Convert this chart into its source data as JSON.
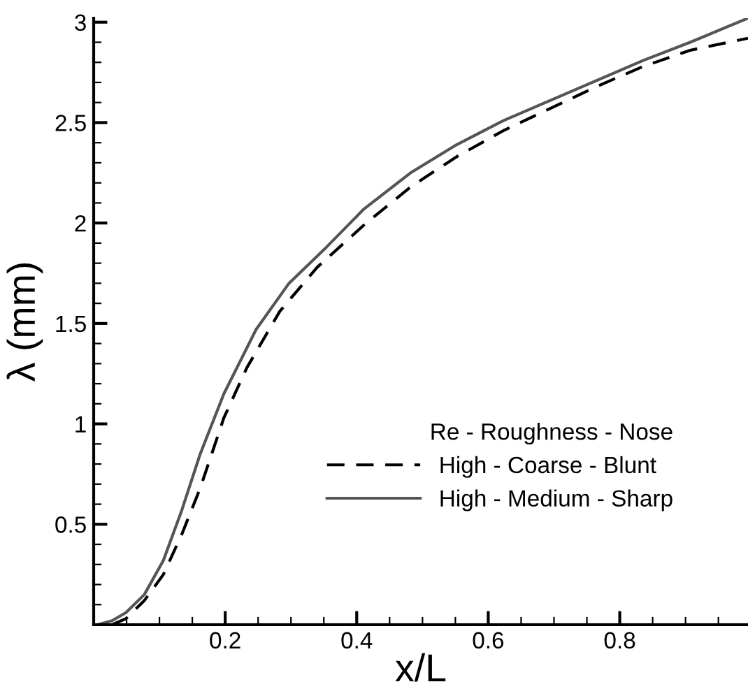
{
  "chart_data": {
    "type": "line",
    "xlabel": "x/L",
    "ylabel": "λ (mm)",
    "legend_title": "Re - Roughness - Nose",
    "legend": "right",
    "grid": false,
    "marker": "none",
    "xlim": [
      0,
      0.995
    ],
    "ylim": [
      0,
      3.02
    ],
    "xticks": [
      0.2,
      0.4,
      0.6,
      0.8
    ],
    "yticks": [
      0.5,
      1,
      1.5,
      2,
      2.5,
      3
    ],
    "series": [
      {
        "name": "High - Coarse - Blunt",
        "color": "#000000",
        "line_style": "dashed",
        "x": [
          0.028,
          0.049,
          0.077,
          0.106,
          0.134,
          0.162,
          0.198,
          0.233,
          0.283,
          0.34,
          0.411,
          0.482,
          0.552,
          0.623,
          0.694,
          0.765,
          0.836,
          0.907,
          0.995
        ],
        "values": [
          0,
          0.03,
          0.12,
          0.25,
          0.45,
          0.68,
          1.03,
          1.28,
          1.56,
          1.78,
          1.99,
          2.18,
          2.33,
          2.46,
          2.57,
          2.68,
          2.78,
          2.86,
          2.92
        ]
      },
      {
        "name": "High - Medium - Sharp",
        "color": "#555555",
        "line_style": "solid",
        "x": [
          0.006,
          0.028,
          0.049,
          0.077,
          0.106,
          0.134,
          0.162,
          0.198,
          0.247,
          0.297,
          0.354,
          0.411,
          0.482,
          0.552,
          0.623,
          0.694,
          0.765,
          0.836,
          0.907,
          0.995
        ],
        "values": [
          0,
          0.02,
          0.06,
          0.15,
          0.32,
          0.57,
          0.85,
          1.15,
          1.47,
          1.7,
          1.88,
          2.07,
          2.25,
          2.39,
          2.51,
          2.61,
          2.71,
          2.81,
          2.9,
          3.02
        ]
      }
    ]
  }
}
